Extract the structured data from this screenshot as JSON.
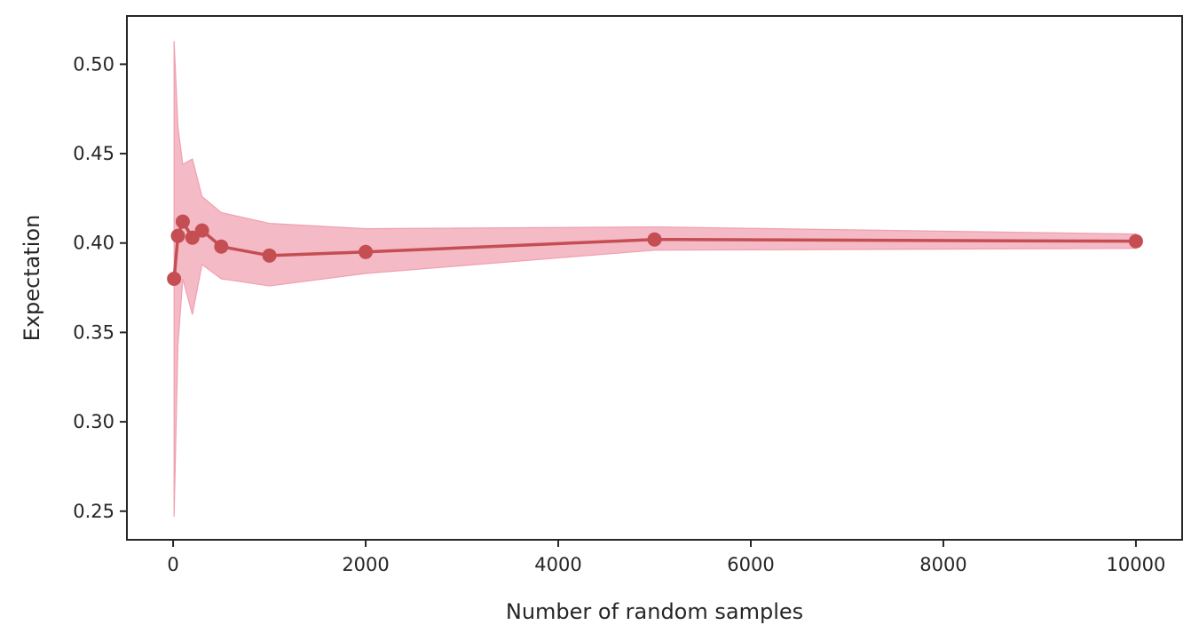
{
  "chart_data": {
    "type": "line",
    "title": "",
    "xlabel": "Number of random samples",
    "ylabel": "Expectation",
    "xlim": [
      -480,
      10480
    ],
    "ylim": [
      0.234,
      0.527
    ],
    "x_ticks": [
      0,
      2000,
      4000,
      6000,
      8000,
      10000
    ],
    "y_ticks": [
      0.25,
      0.3,
      0.35,
      0.4,
      0.45,
      0.5
    ],
    "grid": false,
    "legend": "none",
    "series": [
      {
        "x": [
          10,
          50,
          100,
          200,
          300,
          500,
          1000,
          2000,
          5000,
          10000
        ],
        "y": [
          0.38,
          0.404,
          0.412,
          0.403,
          0.407,
          0.398,
          0.393,
          0.395,
          0.402,
          0.401
        ],
        "upper": [
          0.513,
          0.465,
          0.444,
          0.447,
          0.426,
          0.417,
          0.411,
          0.408,
          0.409,
          0.405
        ],
        "lower": [
          0.247,
          0.343,
          0.38,
          0.36,
          0.388,
          0.38,
          0.376,
          0.383,
          0.396,
          0.397
        ],
        "line_color": "#c44e52",
        "band_color": "#f0a0b0"
      }
    ]
  }
}
